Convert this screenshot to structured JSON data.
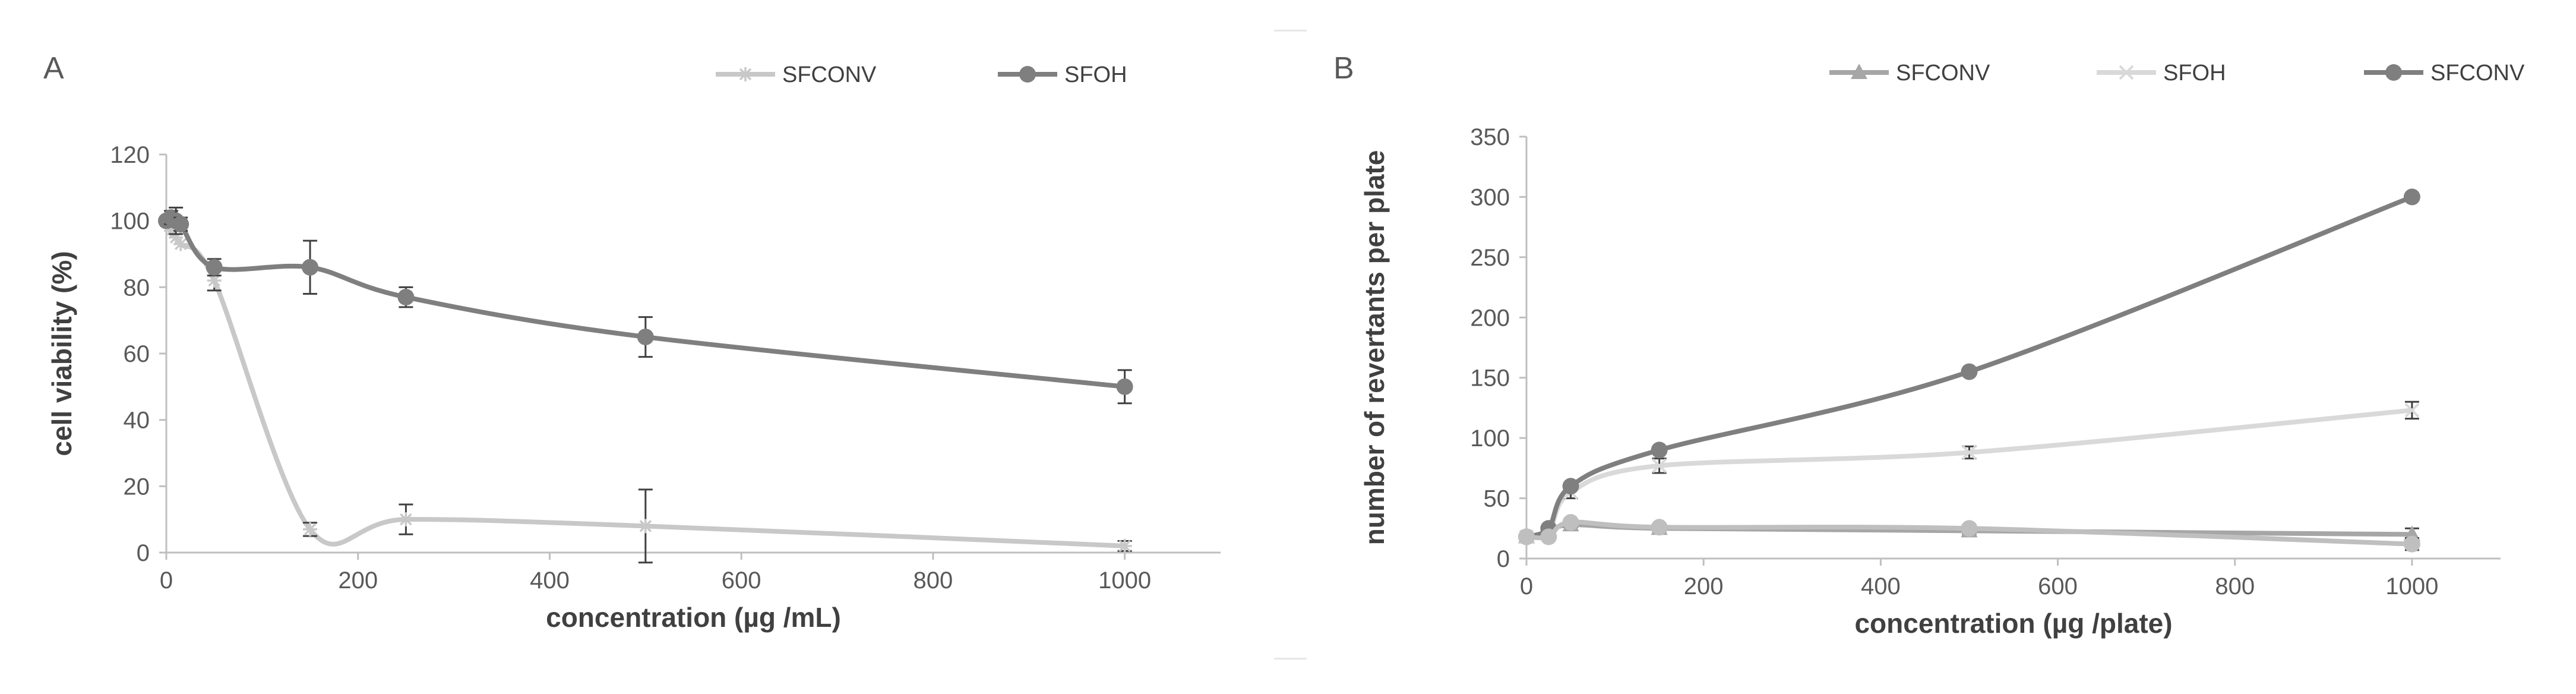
{
  "chart_data": [
    {
      "panel": "A",
      "type": "line",
      "xlabel": "concentration (µg /mL)",
      "ylabel": "cell viability (%)",
      "xlim": [
        0,
        1100
      ],
      "ylim": [
        0,
        120
      ],
      "xticks": [
        0,
        200,
        400,
        600,
        800,
        1000
      ],
      "yticks": [
        0,
        20,
        40,
        60,
        80,
        100,
        120
      ],
      "legend_position": "top",
      "grid": false,
      "series": [
        {
          "name": "SFCONV",
          "color": "#c8c8c8",
          "marker": "star",
          "x": [
            0,
            5,
            10,
            15,
            50,
            150,
            250,
            500,
            1000
          ],
          "y": [
            100,
            97,
            95,
            93,
            82,
            7,
            10,
            8,
            2
          ],
          "error": [
            0,
            0,
            0,
            0,
            3,
            2,
            4.5,
            11,
            1.5
          ]
        },
        {
          "name": "SFOH",
          "color": "#7f7f7f",
          "marker": "circle",
          "x": [
            0,
            5,
            10,
            15,
            50,
            150,
            250,
            500,
            1000
          ],
          "y": [
            100,
            101,
            100,
            99,
            86,
            86,
            77,
            65,
            50
          ],
          "error": [
            0,
            2,
            4,
            2,
            2.5,
            8,
            3,
            6,
            5
          ]
        }
      ]
    },
    {
      "panel": "B",
      "type": "line",
      "xlabel": "concentration (µg /plate)",
      "ylabel": "number of revertants per plate",
      "xlim": [
        0,
        1100
      ],
      "ylim": [
        0,
        350
      ],
      "xticks": [
        0,
        200,
        400,
        600,
        800,
        1000
      ],
      "yticks": [
        0,
        50,
        100,
        150,
        200,
        250,
        300,
        350
      ],
      "legend_position": "top",
      "grid": false,
      "series": [
        {
          "name": "SFCONV",
          "color": "#a6a6a6",
          "marker": "triangle",
          "x": [
            0,
            25,
            50,
            150,
            500,
            1000
          ],
          "y": [
            18,
            22,
            28,
            25,
            23,
            20
          ],
          "error": [
            0,
            0,
            2,
            3,
            3,
            5
          ]
        },
        {
          "name": "SFOH",
          "color": "#d9d9d9",
          "marker": "x",
          "x": [
            0,
            25,
            50,
            150,
            500,
            1000
          ],
          "y": [
            18,
            22,
            55,
            77,
            88,
            123
          ],
          "error": [
            0,
            0,
            5,
            6,
            5,
            7
          ]
        },
        {
          "name": "SFCONV",
          "color": "#7f7f7f",
          "marker": "circle",
          "x": [
            0,
            25,
            50,
            150,
            500,
            1000
          ],
          "y": [
            18,
            25,
            60,
            90,
            155,
            300
          ],
          "error": [
            0,
            0,
            0,
            0,
            0,
            0
          ]
        },
        {
          "name": "SFOH",
          "color": "#bfbfbf",
          "marker": "circle",
          "x": [
            0,
            25,
            50,
            150,
            500,
            1000
          ],
          "y": [
            18,
            18,
            30,
            26,
            25,
            12
          ],
          "error": [
            0,
            0,
            0,
            0,
            0,
            5
          ]
        }
      ]
    }
  ]
}
